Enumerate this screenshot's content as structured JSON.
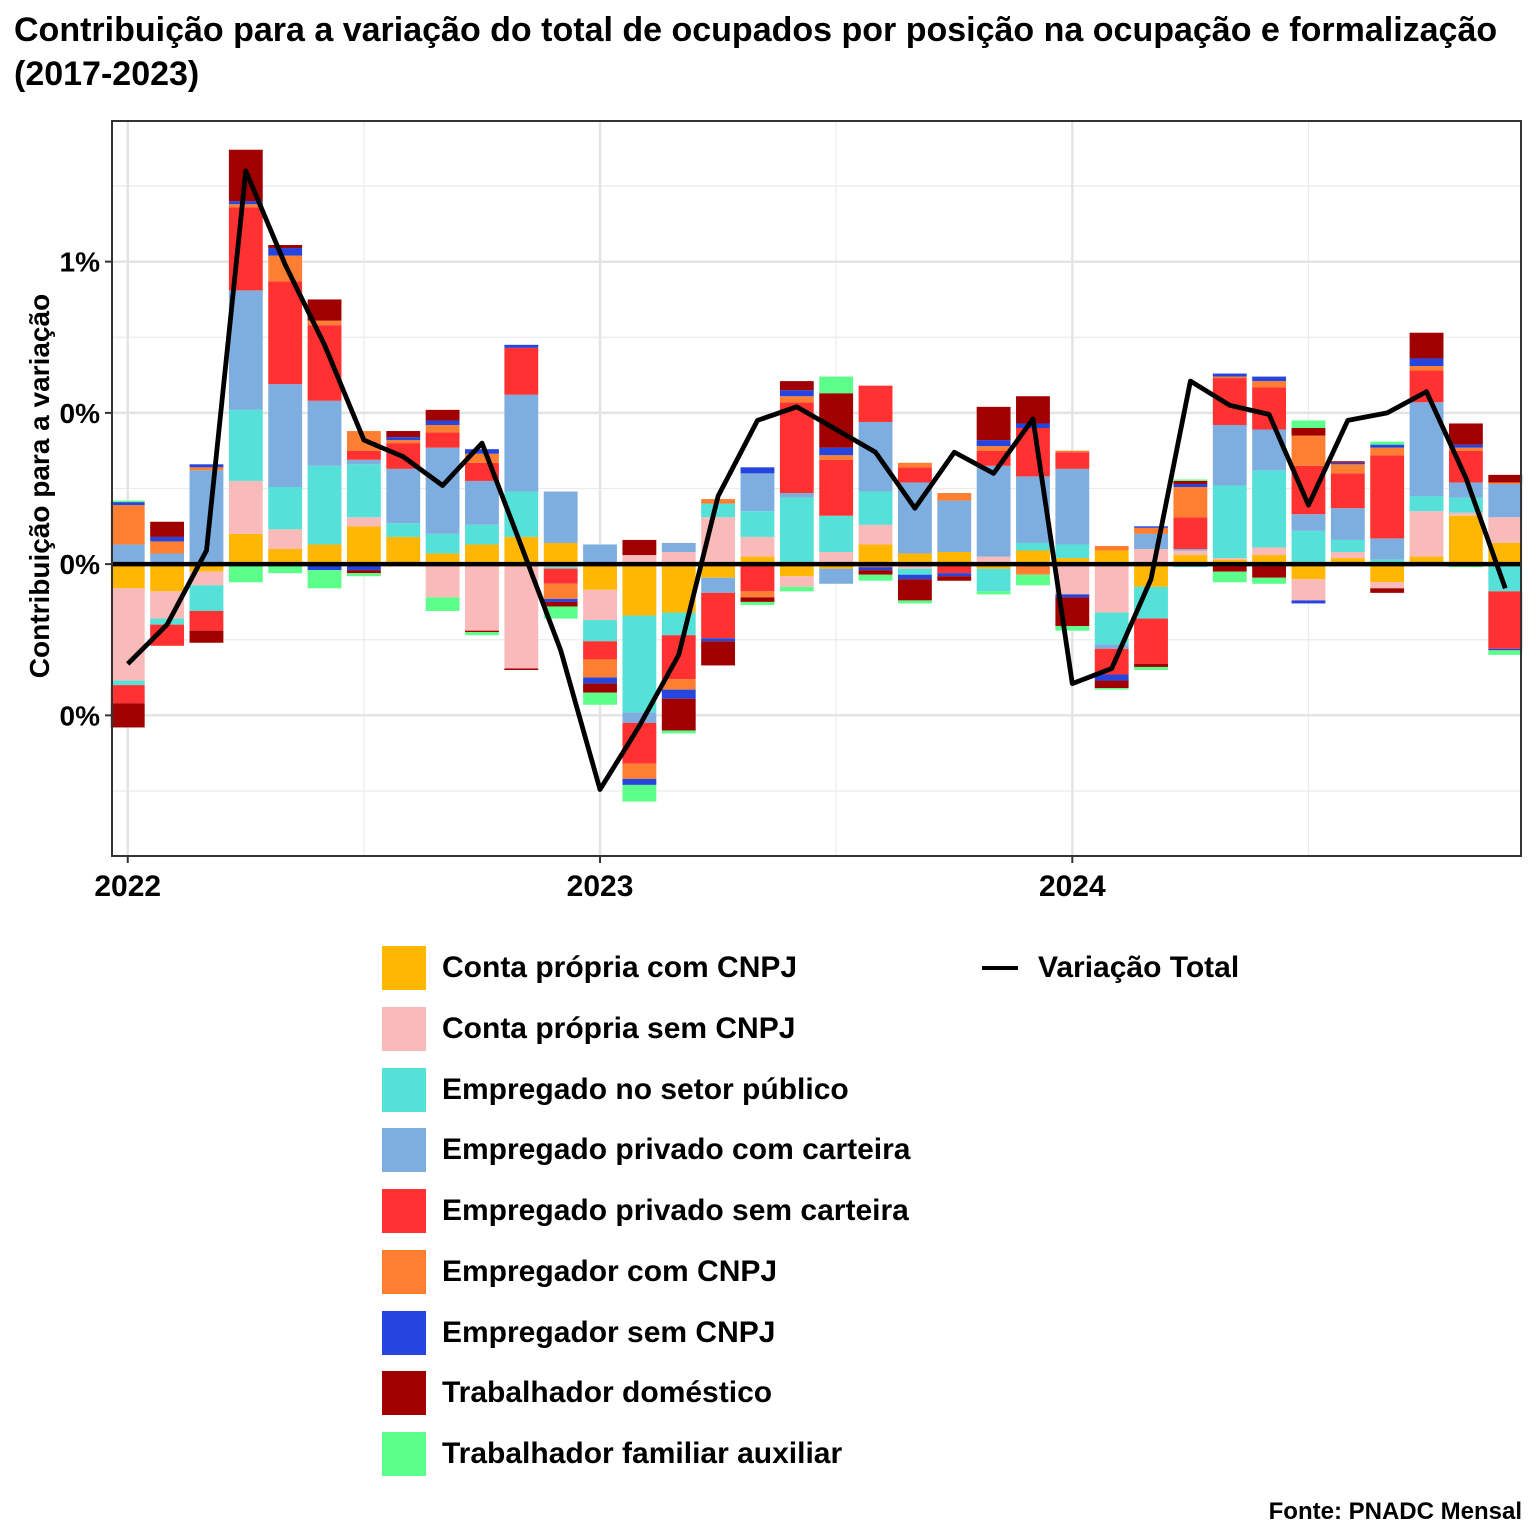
{
  "title": "Contribuição para a variação do total de ocupados por posição na ocupação e formalização (2017-2023)",
  "source": "Fonte: PNADC Mensal",
  "chart_data": {
    "type": "bar",
    "stacked": true,
    "ylabel": "Contribuição para a variação",
    "xlabel": "",
    "y_ticks": [
      {
        "value": -1.0,
        "label": "0%"
      },
      {
        "value": 0.0,
        "label": "0%"
      },
      {
        "value": 1.0,
        "label": "0%"
      },
      {
        "value": 2.0,
        "label": "1%"
      }
    ],
    "x_ticks": [
      {
        "value": 0,
        "label": "2022"
      },
      {
        "value": 12,
        "label": "2023"
      },
      {
        "value": 24,
        "label": "2024"
      }
    ],
    "ylim": [
      -1.93,
      2.93
    ],
    "xlim": [
      -0.4,
      35.4
    ],
    "grid": true,
    "legend_position": "bottom",
    "x": [
      0,
      1,
      2,
      3,
      4,
      5,
      6,
      7,
      8,
      9,
      10,
      11,
      12,
      13,
      14,
      15,
      16,
      17,
      18,
      19,
      20,
      21,
      22,
      23,
      24,
      25,
      26,
      27,
      28,
      29,
      30,
      31,
      32,
      33,
      34,
      35
    ],
    "series": [
      {
        "name": "Conta própria com CNPJ",
        "color": "#FFB703",
        "values": [
          -0.16,
          -0.18,
          -0.05,
          0.2,
          0.1,
          0.13,
          0.25,
          0.18,
          0.07,
          0.13,
          0.18,
          0.14,
          -0.17,
          -0.34,
          -0.32,
          -0.09,
          0.05,
          -0.08,
          -0.03,
          0.13,
          0.07,
          0.08,
          -0.03,
          0.09,
          0.04,
          0.09,
          -0.15,
          0.06,
          0.03,
          0.06,
          -0.1,
          0.04,
          -0.12,
          0.05,
          0.32,
          0.14
        ]
      },
      {
        "name": "Conta própria sem CNPJ",
        "color": "#F9BABA",
        "values": [
          -0.61,
          -0.18,
          -0.09,
          0.35,
          0.13,
          0,
          0.06,
          0,
          -0.22,
          -0.44,
          -0.69,
          -0.02,
          -0.2,
          0.06,
          0.08,
          0.31,
          0.13,
          -0.07,
          0.08,
          0.13,
          -0.03,
          0,
          0.05,
          0,
          -0.2,
          -0.32,
          0.1,
          0.03,
          0.01,
          0.05,
          -0.14,
          0.04,
          -0.04,
          0.3,
          0.02,
          0.17
        ]
      },
      {
        "name": "Empregado no setor público",
        "color": "#56E1D8",
        "values": [
          -0.03,
          -0.04,
          -0.17,
          0.47,
          0.28,
          0.52,
          0.35,
          0.09,
          0.13,
          0.13,
          0.3,
          -0.01,
          -0.14,
          -0.64,
          -0.15,
          0.09,
          0.17,
          0.44,
          0.24,
          0.22,
          -0.04,
          0,
          -0.15,
          0.05,
          0.09,
          -0.21,
          -0.21,
          -0.02,
          0.48,
          0.51,
          0.22,
          0.08,
          0.03,
          0.1,
          0.1,
          -0.18
        ]
      },
      {
        "name": "Empregado privado com carteira",
        "color": "#7EAEE0",
        "values": [
          0.13,
          0.07,
          0.62,
          0.79,
          0.68,
          0.43,
          0.03,
          0.36,
          0.57,
          0.29,
          0.64,
          0.34,
          0.13,
          -0.07,
          0.06,
          -0.1,
          0.25,
          0.03,
          -0.1,
          0.46,
          0.47,
          0.34,
          0.6,
          0.44,
          0.5,
          -0.03,
          0.1,
          0.01,
          0.4,
          0.27,
          0.11,
          0.21,
          0.14,
          0.62,
          0.1,
          0.22
        ]
      },
      {
        "name": "Empregado privado sem carteira",
        "color": "#FF3131",
        "values": [
          -0.12,
          -0.14,
          -0.13,
          0.55,
          0.68,
          0.5,
          0.06,
          0.17,
          0.1,
          0.12,
          0.31,
          -0.1,
          -0.12,
          -0.27,
          -0.29,
          -0.3,
          -0.18,
          0.6,
          0.37,
          0.24,
          0.1,
          -0.06,
          0.1,
          0.32,
          0.11,
          -0.17,
          -0.3,
          0.21,
          0.31,
          0.28,
          0.32,
          0.23,
          0.55,
          0.21,
          0.21,
          -0.38
        ]
      },
      {
        "name": "Empregador com CNPJ",
        "color": "#FF7F32",
        "values": [
          0.26,
          0.08,
          0.02,
          0.02,
          0.17,
          0.03,
          0.13,
          0.02,
          0.05,
          0.06,
          0,
          -0.1,
          -0.12,
          -0.1,
          -0.07,
          0.03,
          -0.04,
          0.04,
          0.03,
          -0.02,
          0.03,
          0.05,
          0.03,
          -0.07,
          0.01,
          0.03,
          0.04,
          0.2,
          0.01,
          0.04,
          0.2,
          0.06,
          0.05,
          0.03,
          0.02,
          0.01
        ]
      },
      {
        "name": "Empregador sem CNPJ",
        "color": "#2545DE",
        "values": [
          0.02,
          0.03,
          0.02,
          0.02,
          0.05,
          -0.04,
          -0.04,
          0.02,
          0.03,
          0.03,
          0.02,
          -0.02,
          -0.04,
          -0.04,
          -0.06,
          -0.02,
          0.04,
          0.04,
          0.05,
          -0.02,
          -0.03,
          -0.02,
          0.04,
          0.03,
          -0.02,
          -0.04,
          0.01,
          0.02,
          0.02,
          0.03,
          -0.02,
          0.01,
          0.02,
          0.05,
          0.02,
          -0.01
        ]
      },
      {
        "name": "Trabalhador doméstico",
        "color": "#A00000",
        "values": [
          -0.16,
          0.1,
          -0.08,
          0.34,
          0.02,
          0.14,
          -0.02,
          0.04,
          0.07,
          -0.01,
          -0.01,
          -0.03,
          -0.06,
          0.1,
          -0.21,
          -0.16,
          -0.03,
          0.06,
          0.36,
          -0.03,
          -0.14,
          -0.03,
          0.22,
          0.18,
          -0.19,
          -0.05,
          -0.02,
          0.02,
          -0.05,
          -0.09,
          0.05,
          0.01,
          -0.03,
          0.17,
          0.14,
          0.05
        ]
      },
      {
        "name": "Trabalhador familiar auxiliar",
        "color": "#5CFF8A",
        "values": [
          0.01,
          0,
          0,
          -0.12,
          -0.06,
          -0.12,
          -0.02,
          0,
          -0.09,
          -0.02,
          0,
          -0.08,
          -0.08,
          -0.11,
          -0.02,
          0,
          -0.02,
          -0.03,
          0.11,
          -0.04,
          -0.02,
          0,
          -0.02,
          -0.07,
          -0.03,
          -0.01,
          -0.02,
          0.01,
          -0.07,
          -0.04,
          0.05,
          -0.01,
          0.02,
          0,
          -0.02,
          -0.03
        ]
      },
      {
        "name": "Variação Total",
        "type": "line",
        "color": "#000000",
        "values": [
          -0.66,
          -0.4,
          0.09,
          2.6,
          1.98,
          1.45,
          0.82,
          0.71,
          0.52,
          0.8,
          0.12,
          -0.57,
          -1.49,
          -1.07,
          -0.6,
          0.45,
          0.95,
          1.04,
          0.89,
          0.74,
          0.37,
          0.74,
          0.6,
          0.96,
          -0.79,
          -0.69,
          -0.1,
          1.21,
          1.05,
          0.99,
          0.39,
          0.95,
          1.0,
          1.14,
          0.57,
          -0.16
        ]
      }
    ]
  }
}
